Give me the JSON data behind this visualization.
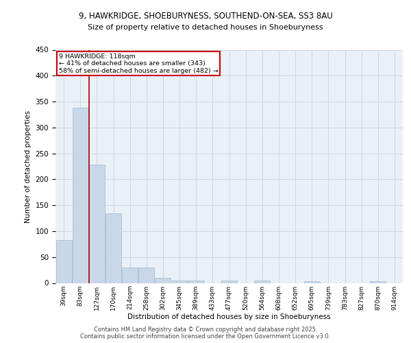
{
  "title1": "9, HAWKRIDGE, SHOEBURYNESS, SOUTHEND-ON-SEA, SS3 8AU",
  "title2": "Size of property relative to detached houses in Shoeburyness",
  "xlabel": "Distribution of detached houses by size in Shoeburyness",
  "ylabel": "Number of detached properties",
  "categories": [
    "39sqm",
    "83sqm",
    "127sqm",
    "170sqm",
    "214sqm",
    "258sqm",
    "302sqm",
    "345sqm",
    "389sqm",
    "433sqm",
    "477sqm",
    "520sqm",
    "564sqm",
    "608sqm",
    "652sqm",
    "695sqm",
    "739sqm",
    "783sqm",
    "827sqm",
    "870sqm",
    "914sqm"
  ],
  "values": [
    83,
    338,
    228,
    135,
    30,
    30,
    10,
    5,
    5,
    0,
    5,
    0,
    5,
    0,
    0,
    3,
    0,
    0,
    0,
    3,
    0
  ],
  "bar_color": "#c8d8e8",
  "bar_edge_color": "#a0b8cc",
  "grid_color": "#d0d8e0",
  "bg_color": "#eaf0f8",
  "vline_color": "#aa0000",
  "annotation_text": "9 HAWKRIDGE: 118sqm\n← 41% of detached houses are smaller (343)\n58% of semi-detached houses are larger (482) →",
  "annotation_box_color": "#ffffff",
  "annotation_box_edge": "#cc0000",
  "ylim": [
    0,
    450
  ],
  "yticks": [
    0,
    50,
    100,
    150,
    200,
    250,
    300,
    350,
    400,
    450
  ],
  "footer1": "Contains HM Land Registry data © Crown copyright and database right 2025.",
  "footer2": "Contains public sector information licensed under the Open Government Licence v3.0."
}
